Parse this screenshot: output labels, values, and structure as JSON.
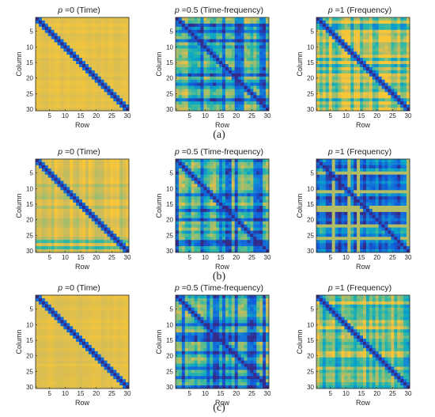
{
  "chart_data": [
    {
      "type": "heatmap",
      "title_symbol": "p",
      "title_rest": " =0 (Time)",
      "xlabel": "Row",
      "ylabel": "Column",
      "xticks": [
        5,
        10,
        15,
        20,
        25,
        30
      ],
      "yticks": [
        5,
        10,
        15,
        20,
        25,
        30
      ],
      "xlim": [
        0.5,
        30.5
      ],
      "ylim": [
        30.5,
        0.5
      ],
      "group": "a",
      "style": "time",
      "seed": 3
    },
    {
      "type": "heatmap",
      "title_symbol": "p",
      "title_rest": " =0.5 (Time-frequency)",
      "xlabel": "Row",
      "ylabel": "Column",
      "xticks": [
        5,
        10,
        15,
        20,
        25,
        30
      ],
      "yticks": [
        5,
        10,
        15,
        20,
        25,
        30
      ],
      "xlim": [
        0.5,
        30.5
      ],
      "ylim": [
        30.5,
        0.5
      ],
      "group": "a",
      "style": "tf",
      "seed": 11
    },
    {
      "type": "heatmap",
      "title_symbol": "p",
      "title_rest": " =1 (Frequency)",
      "xlabel": "Row",
      "ylabel": "Column",
      "xticks": [
        5,
        10,
        15,
        20,
        25,
        30
      ],
      "yticks": [
        5,
        10,
        15,
        20,
        25,
        30
      ],
      "xlim": [
        0.5,
        30.5
      ],
      "ylim": [
        30.5,
        0.5
      ],
      "group": "a",
      "style": "freq",
      "seed": 17
    },
    {
      "type": "heatmap",
      "title_symbol": "p",
      "title_rest": " =0 (Time)",
      "xlabel": "Row",
      "ylabel": "Column",
      "xticks": [
        5,
        10,
        15,
        20,
        25,
        30
      ],
      "yticks": [
        5,
        10,
        15,
        20,
        25,
        30
      ],
      "xlim": [
        0.5,
        30.5
      ],
      "ylim": [
        30.5,
        0.5
      ],
      "group": "b",
      "style": "time2",
      "seed": 23
    },
    {
      "type": "heatmap",
      "title_symbol": "p",
      "title_rest": " =0.5 (Time-frequency)",
      "xlabel": "Row",
      "ylabel": "Column",
      "xticks": [
        5,
        10,
        15,
        20,
        25,
        30
      ],
      "yticks": [
        5,
        10,
        15,
        20,
        25,
        30
      ],
      "xlim": [
        0.5,
        30.5
      ],
      "ylim": [
        30.5,
        0.5
      ],
      "group": "b",
      "style": "tf",
      "seed": 29
    },
    {
      "type": "heatmap",
      "title_symbol": "p",
      "title_rest": " =1 (Frequency)",
      "xlabel": "Row",
      "ylabel": "Column",
      "xticks": [
        5,
        10,
        15,
        20,
        25,
        30
      ],
      "yticks": [
        5,
        10,
        15,
        20,
        25,
        30
      ],
      "xlim": [
        0.5,
        30.5
      ],
      "ylim": [
        30.5,
        0.5
      ],
      "group": "b",
      "style": "freq2",
      "seed": 31
    },
    {
      "type": "heatmap",
      "title_symbol": "p",
      "title_rest": " =0 (Time)",
      "xlabel": "Row",
      "ylabel": "Column",
      "xticks": [
        5,
        10,
        15,
        20,
        25,
        30
      ],
      "yticks": [
        5,
        10,
        15,
        20,
        25,
        30
      ],
      "xlim": [
        0.5,
        30.5
      ],
      "ylim": [
        30.5,
        0.5
      ],
      "group": "c",
      "style": "time",
      "seed": 37
    },
    {
      "type": "heatmap",
      "title_symbol": "p",
      "title_rest": " =0.5 (Time-frequency)",
      "xlabel": "Row",
      "ylabel": "Column",
      "xticks": [
        5,
        10,
        15,
        20,
        25,
        30
      ],
      "yticks": [
        5,
        10,
        15,
        20,
        25,
        30
      ],
      "xlim": [
        0.5,
        30.5
      ],
      "ylim": [
        30.5,
        0.5
      ],
      "group": "c",
      "style": "tf",
      "seed": 41
    },
    {
      "type": "heatmap",
      "title_symbol": "p",
      "title_rest": " =1 (Frequency)",
      "xlabel": "Row",
      "ylabel": "Column",
      "xticks": [
        5,
        10,
        15,
        20,
        25,
        30
      ],
      "yticks": [
        5,
        10,
        15,
        20,
        25,
        30
      ],
      "xlim": [
        0.5,
        30.5
      ],
      "ylim": [
        30.5,
        0.5
      ],
      "group": "c",
      "style": "freq",
      "seed": 43
    }
  ],
  "captions": {
    "a": "(a)",
    "b": "(b)",
    "c": "(c)"
  },
  "colormap": [
    "#352a87",
    "#0f5cdd",
    "#1481d6",
    "#06a4ca",
    "#2eb7a4",
    "#87bf77",
    "#d1bb59",
    "#fec832",
    "#f9fb0e"
  ]
}
